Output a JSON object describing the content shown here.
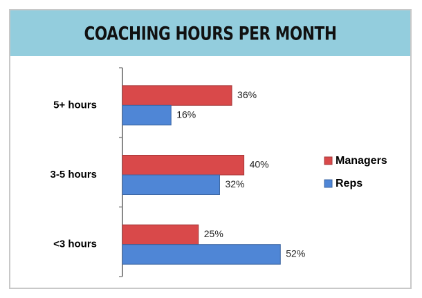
{
  "chart_data": {
    "type": "bar",
    "orientation": "horizontal",
    "title": "COACHING HOURS PER MONTH",
    "categories": [
      "5+ hours",
      "3-5 hours",
      "<3 hours"
    ],
    "series": [
      {
        "name": "Managers",
        "color": "#d9494a",
        "values": [
          36,
          40,
          25
        ],
        "value_labels": [
          "36%",
          "40%",
          "25%"
        ]
      },
      {
        "name": "Reps",
        "color": "#4f86d6",
        "values": [
          16,
          32,
          52
        ],
        "value_labels": [
          "16%",
          "32%",
          "52%"
        ]
      }
    ],
    "legend": "right"
  }
}
